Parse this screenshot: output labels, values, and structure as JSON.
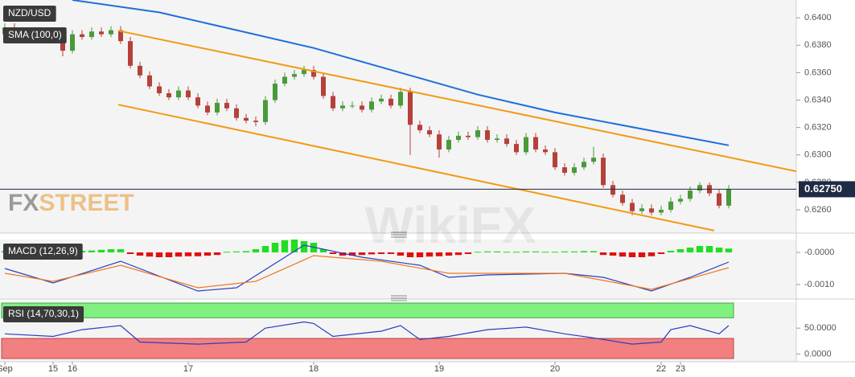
{
  "chart_data": [
    {
      "type": "candlestick",
      "title": "NZD/USD",
      "categories": [
        "Sep",
        null,
        null,
        null,
        null,
        "15",
        null,
        "16",
        null,
        null,
        null,
        null,
        null,
        null,
        null,
        null,
        null,
        null,
        null,
        "17",
        null,
        null,
        null,
        null,
        null,
        null,
        null,
        null,
        null,
        null,
        null,
        null,
        "18",
        null,
        null,
        null,
        null,
        null,
        null,
        null,
        null,
        null,
        null,
        null,
        null,
        "19",
        null,
        null,
        null,
        null,
        null,
        null,
        null,
        null,
        null,
        null,
        null,
        "20",
        null,
        null,
        null,
        null,
        null,
        null,
        null,
        null,
        null,
        null,
        "22",
        null,
        "23",
        null,
        null,
        null,
        null,
        null
      ],
      "xlim": [
        -0.5,
        82
      ],
      "open": [
        0.6388,
        0.6393,
        0.639,
        0.6387,
        0.6389,
        0.6384,
        0.6386,
        0.6376,
        0.6388,
        0.6386,
        0.639,
        0.6388,
        0.6391,
        0.6383,
        0.6365,
        0.6358,
        0.635,
        0.6345,
        0.6342,
        0.6347,
        0.6342,
        0.6336,
        0.6331,
        0.6338,
        0.6334,
        0.6327,
        0.6325,
        0.6324,
        0.634,
        0.6352,
        0.6357,
        0.6359,
        0.6362,
        0.6357,
        0.6343,
        0.6334,
        0.6336,
        0.6336,
        0.6333,
        0.6339,
        0.6341,
        0.6336,
        0.6346,
        0.6322,
        0.6318,
        0.6315,
        0.6304,
        0.6311,
        0.6314,
        0.6313,
        0.6318,
        0.6311,
        0.6312,
        0.6308,
        0.6302,
        0.6313,
        0.6304,
        0.6302,
        0.6291,
        0.6287,
        0.6291,
        0.6295,
        0.6298,
        0.6278,
        0.6271,
        0.6265,
        0.6259,
        0.6261,
        0.6258,
        0.626,
        0.6266,
        0.6268,
        0.6274,
        0.6278,
        0.6272,
        0.6263
      ],
      "high": [
        0.6396,
        0.6396,
        0.6393,
        0.6392,
        0.6392,
        0.6389,
        0.6389,
        0.6391,
        0.6391,
        0.6393,
        0.6393,
        0.6394,
        0.6394,
        0.6386,
        0.6368,
        0.6361,
        0.6353,
        0.6348,
        0.635,
        0.635,
        0.6345,
        0.6339,
        0.6341,
        0.6341,
        0.6337,
        0.633,
        0.6328,
        0.6343,
        0.6355,
        0.636,
        0.6362,
        0.6365,
        0.6365,
        0.636,
        0.6346,
        0.6339,
        0.6339,
        0.6339,
        0.6342,
        0.6344,
        0.6344,
        0.6349,
        0.6349,
        0.6325,
        0.6321,
        0.6318,
        0.6314,
        0.6317,
        0.6317,
        0.6321,
        0.6321,
        0.6315,
        0.6315,
        0.6311,
        0.6316,
        0.6316,
        0.6307,
        0.6305,
        0.6294,
        0.6294,
        0.6298,
        0.6306,
        0.6301,
        0.6281,
        0.6274,
        0.6268,
        0.6264,
        0.6264,
        0.6263,
        0.6269,
        0.6271,
        0.6277,
        0.628,
        0.628,
        0.6275,
        0.6278
      ],
      "low": [
        0.6386,
        0.6388,
        0.6385,
        0.6385,
        0.6382,
        0.6382,
        0.6372,
        0.6374,
        0.6384,
        0.6384,
        0.6386,
        0.6386,
        0.6381,
        0.6363,
        0.6356,
        0.6348,
        0.6343,
        0.634,
        0.634,
        0.634,
        0.6334,
        0.6329,
        0.6329,
        0.6332,
        0.6325,
        0.6323,
        0.6321,
        0.6322,
        0.6338,
        0.635,
        0.6355,
        0.6357,
        0.6355,
        0.6341,
        0.6332,
        0.6332,
        0.6334,
        0.6331,
        0.6331,
        0.6337,
        0.6334,
        0.6334,
        0.63,
        0.6316,
        0.6313,
        0.6298,
        0.6302,
        0.6309,
        0.6311,
        0.6311,
        0.6309,
        0.6309,
        0.6306,
        0.63,
        0.63,
        0.6302,
        0.63,
        0.6289,
        0.6285,
        0.6285,
        0.6289,
        0.6293,
        0.6276,
        0.6269,
        0.6263,
        0.6256,
        0.6257,
        0.6256,
        0.6256,
        0.6258,
        0.6264,
        0.6266,
        0.6272,
        0.627,
        0.6261,
        0.6261
      ],
      "close": [
        0.6393,
        0.639,
        0.6387,
        0.6389,
        0.6384,
        0.6386,
        0.6376,
        0.6388,
        0.6386,
        0.639,
        0.6388,
        0.6391,
        0.6383,
        0.6365,
        0.6358,
        0.635,
        0.6345,
        0.6342,
        0.6347,
        0.6342,
        0.6336,
        0.6331,
        0.6338,
        0.6334,
        0.6327,
        0.6325,
        0.6324,
        0.634,
        0.6352,
        0.6357,
        0.6359,
        0.6362,
        0.6357,
        0.6343,
        0.6334,
        0.6336,
        0.6336,
        0.6333,
        0.6339,
        0.6341,
        0.6336,
        0.6346,
        0.6322,
        0.6318,
        0.6315,
        0.6304,
        0.6311,
        0.6314,
        0.6313,
        0.6318,
        0.6311,
        0.6312,
        0.6308,
        0.6302,
        0.6313,
        0.6304,
        0.6302,
        0.6291,
        0.6287,
        0.6291,
        0.6295,
        0.6298,
        0.6278,
        0.6271,
        0.6265,
        0.6259,
        0.6261,
        0.6258,
        0.626,
        0.6266,
        0.6268,
        0.6274,
        0.6278,
        0.6272,
        0.6263,
        0.6275
      ],
      "up_color": "#4a9a3a",
      "down_color": "#b5413a",
      "ylim": [
        0.6243,
        0.6413
      ],
      "yticks": [
        {
          "value": 0.626,
          "label": "0.6260"
        },
        {
          "value": 0.628,
          "label": "0.6280"
        },
        {
          "value": 0.63,
          "label": "0.6300"
        },
        {
          "value": 0.632,
          "label": "0.6320"
        },
        {
          "value": 0.634,
          "label": "0.6340"
        },
        {
          "value": 0.636,
          "label": "0.6360"
        },
        {
          "value": 0.638,
          "label": "0.6380"
        },
        {
          "value": 0.64,
          "label": "0.6400"
        }
      ],
      "lines": [
        {
          "name": "SMA (100,0)",
          "color": "#1e6fd9",
          "x": [
            7,
            16,
            24,
            32,
            41,
            49,
            57,
            66,
            75
          ],
          "values": [
            0.6413,
            0.6404,
            0.6391,
            0.6378,
            0.636,
            0.6344,
            0.6331,
            0.6319,
            0.6307
          ]
        }
      ],
      "annotations": [
        {
          "color": "#f29a12",
          "x": [
            11.75,
            82
          ],
          "values": [
            0.63906,
            0.62881
          ]
        },
        {
          "color": "#f29a12",
          "x": [
            11.75,
            73.5
          ],
          "values": [
            0.63367,
            0.62448
          ]
        }
      ],
      "last_price": {
        "value": 0.6275,
        "label": "0.62750"
      },
      "logo": {
        "fx": "FX",
        "street": "STREET"
      },
      "watermark": "WikiFX"
    },
    {
      "type": "macd",
      "title": "MACD (12,26,9)",
      "xlim": [
        -0.5,
        82
      ],
      "ylim": [
        -0.00145,
        0.0004
      ],
      "yticks": [
        {
          "value": 0,
          "label": "-0.0000"
        },
        {
          "value": -0.001,
          "label": "-0.0010"
        }
      ],
      "histogram": {
        "up_color": "#22dd22",
        "down_color": "#e01010",
        "values": [
          4e-05,
          5e-05,
          6e-05,
          5e-05,
          4e-05,
          3e-05,
          2e-05,
          4e-05,
          5e-05,
          6e-05,
          8e-05,
          0.0001,
          0.0001,
          -5e-05,
          -0.0001,
          -0.00013,
          -0.00015,
          -0.00015,
          -0.00013,
          -0.00012,
          -0.00012,
          -0.0001,
          -8e-05,
          2e-05,
          3e-05,
          4e-05,
          0.0001,
          0.0002,
          0.0003,
          0.00038,
          0.0004,
          0.00035,
          0.0003,
          0.0001,
          -5e-05,
          -0.0001,
          -0.0001,
          -8e-05,
          -6e-05,
          -5e-05,
          -5e-05,
          -0.0001,
          -0.00015,
          -0.00015,
          -0.00013,
          -0.00012,
          -0.0001,
          -8e-05,
          -5e-05,
          2e-05,
          3e-05,
          3e-05,
          2e-05,
          2e-05,
          3e-05,
          3e-05,
          2e-05,
          2e-05,
          3e-05,
          3e-05,
          4e-05,
          4e-05,
          -8e-05,
          -0.0001,
          -0.00013,
          -0.00015,
          -0.00015,
          -0.00012,
          -5e-05,
          5e-05,
          0.0001,
          0.00015,
          0.0002,
          0.0002,
          0.00015,
          0.00012
        ]
      },
      "lines": [
        {
          "color": "#2a3fbf",
          "x": [
            0,
            5,
            12,
            20,
            24,
            31,
            37,
            43,
            46,
            50,
            58,
            62,
            67,
            71,
            75
          ],
          "values": [
            -0.0005,
            -0.00095,
            -0.000275,
            -0.0012,
            -0.0011,
            0.000225,
            -0.00015,
            -0.0004,
            -0.000775,
            -0.0007,
            -0.00065,
            -0.000775,
            -0.0012,
            -0.000775,
            -0.0003
          ]
        },
        {
          "color": "#f07820",
          "x": [
            0,
            5,
            12,
            20,
            26,
            32,
            39,
            46,
            58,
            67,
            75
          ],
          "values": [
            -0.00065,
            -0.0009,
            -0.0004,
            -0.0011,
            -0.0009,
            -0.0001,
            -0.000275,
            -0.00065,
            -0.00065,
            -0.00115,
            -0.000475
          ]
        }
      ]
    },
    {
      "type": "rsi",
      "title": "RSI (14,70,30,1)",
      "xlim": [
        -0.5,
        82
      ],
      "ylim": [
        -15,
        100
      ],
      "yticks": [
        {
          "value": 0,
          "label": "0.0000"
        },
        {
          "value": 50,
          "label": "50.0000"
        }
      ],
      "overbought": 70,
      "oversold": 30,
      "overbought_color": "#80f080",
      "oversold_color": "#f28080",
      "line": {
        "color": "#2a3fbf",
        "x": [
          0,
          5,
          8,
          12,
          14,
          20,
          25,
          27,
          31,
          32,
          34,
          39,
          41,
          43,
          46,
          50,
          54,
          58,
          61,
          65,
          68,
          69,
          71,
          74,
          75
        ],
        "values": [
          39,
          34,
          47,
          55,
          23,
          19,
          23,
          50,
          62,
          59,
          34,
          44,
          55,
          28,
          34,
          47,
          52,
          39,
          31,
          19,
          23,
          47,
          55,
          39,
          55
        ]
      }
    }
  ]
}
